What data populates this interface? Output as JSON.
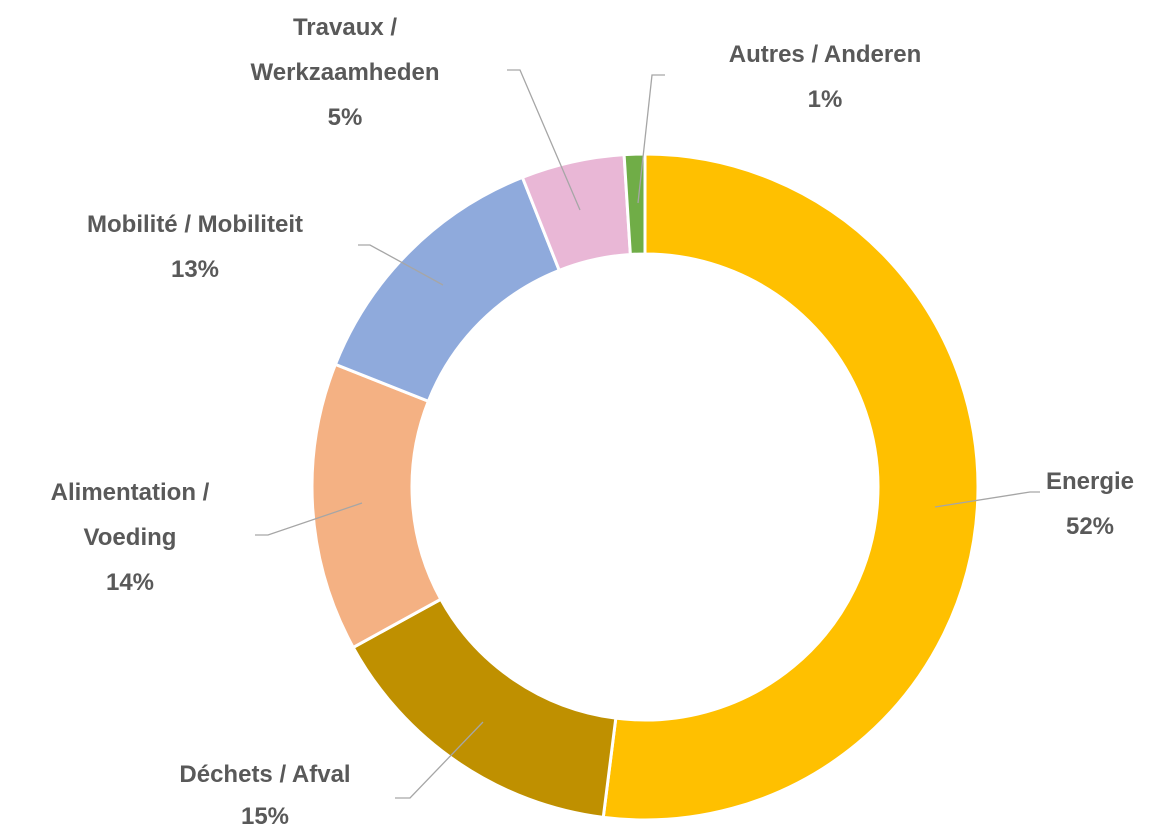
{
  "chart_data": {
    "type": "donut",
    "categories": [
      "Energie",
      "Déchets / Afval",
      "Alimentation / Voeding",
      "Mobilité / Mobiliteit",
      "Travaux / Werkzaamheden",
      "Autres / Anderen"
    ],
    "values": [
      52,
      15,
      14,
      13,
      5,
      1
    ],
    "value_labels": [
      "52%",
      "15%",
      "14%",
      "13%",
      "5%",
      "1%"
    ],
    "colors": [
      "#FFC000",
      "#BF9000",
      "#F4B183",
      "#8FAADC",
      "#E9B7D6",
      "#70AD47"
    ]
  }
}
